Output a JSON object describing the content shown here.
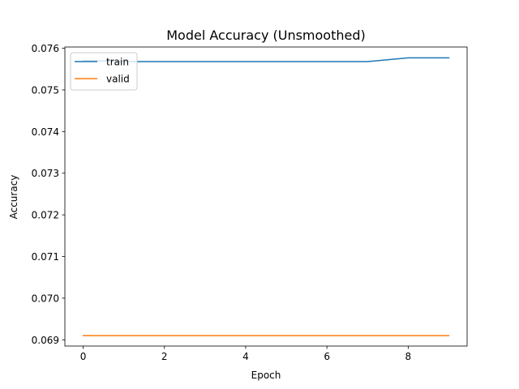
{
  "chart_data": {
    "type": "line",
    "title": "Model Accuracy (Unsmoothed)",
    "xlabel": "Epoch",
    "ylabel": "Accuracy",
    "x": [
      0,
      1,
      2,
      3,
      4,
      5,
      6,
      7,
      8,
      9
    ],
    "series": [
      {
        "name": "train",
        "color": "#1f77b4",
        "values": [
          0.07571,
          0.07568,
          0.07568,
          0.07568,
          0.07568,
          0.07568,
          0.07568,
          0.07568,
          0.07577,
          0.07577
        ]
      },
      {
        "name": "valid",
        "color": "#ff7f0e",
        "values": [
          0.0691,
          0.0691,
          0.0691,
          0.0691,
          0.0691,
          0.0691,
          0.0691,
          0.0691,
          0.0691,
          0.0691
        ]
      }
    ],
    "xlim": [
      -0.45,
      9.45
    ],
    "ylim": [
      0.06885,
      0.07603
    ],
    "xticks": [
      0,
      2,
      4,
      6,
      8
    ],
    "xtick_labels": [
      "0",
      "2",
      "4",
      "6",
      "8"
    ],
    "yticks": [
      0.069,
      0.07,
      0.071,
      0.072,
      0.073,
      0.074,
      0.075,
      0.076
    ],
    "ytick_labels": [
      "0.069",
      "0.070",
      "0.071",
      "0.072",
      "0.073",
      "0.074",
      "0.075",
      "0.076"
    ],
    "grid": false,
    "legend_position": "top-left"
  }
}
